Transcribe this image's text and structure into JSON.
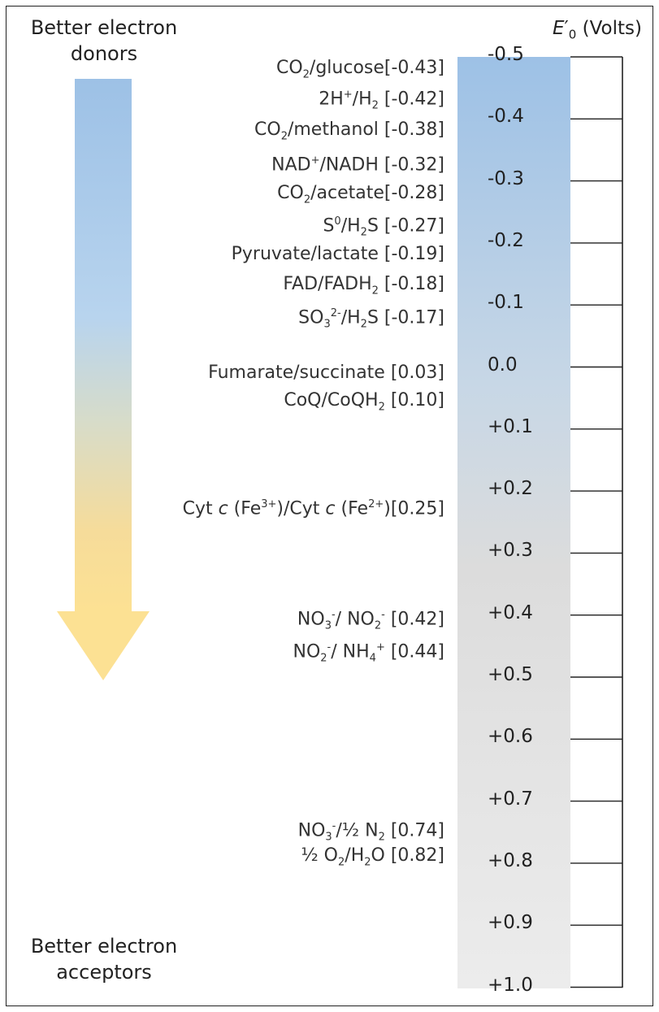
{
  "top_caption": [
    "Better electron",
    "donors"
  ],
  "bottom_caption": [
    "Better electron",
    "acceptors"
  ],
  "axis_title": {
    "symbol": "E",
    "prime": "′",
    "sub": "0",
    "unit": "(Volts)"
  },
  "ticks": [
    "-0.5",
    "-0.4",
    "-0.3",
    "-0.2",
    "-0.1",
    "0.0",
    "+0.1",
    "+0.2",
    "+0.3",
    "+0.4",
    "+0.5",
    "+0.6",
    "+0.7",
    "+0.8",
    "+0.9",
    "+1.0"
  ],
  "couples": [
    {
      "parts": [
        "CO",
        {
          "sub": "2"
        },
        "/glucose[-0.43]"
      ],
      "value": -0.43
    },
    {
      "parts": [
        "2H",
        {
          "sup": "+"
        },
        "/H",
        {
          "sub": "2"
        },
        " [-0.42]"
      ],
      "value": -0.42
    },
    {
      "parts": [
        "CO",
        {
          "sub": "2"
        },
        "/methanol [-0.38]"
      ],
      "value": -0.38
    },
    {
      "parts": [
        "NAD",
        {
          "sup": "+"
        },
        "/NADH [-0.32]"
      ],
      "value": -0.32
    },
    {
      "parts": [
        "CO",
        {
          "sub": "2"
        },
        "/acetate[-0.28]"
      ],
      "value": -0.28
    },
    {
      "parts": [
        "S",
        {
          "sup": "0"
        },
        "/H",
        {
          "sub": "2"
        },
        "S [-0.27]"
      ],
      "value": -0.27
    },
    {
      "parts": [
        "Pyruvate/lactate [-0.19]"
      ],
      "value": -0.19
    },
    {
      "parts": [
        "FAD/FADH",
        {
          "sub": "2"
        },
        " [-0.18]"
      ],
      "value": -0.18
    },
    {
      "parts": [
        "SO",
        {
          "sub": "3"
        },
        {
          "sup": "2-"
        },
        "/H",
        {
          "sub": "2"
        },
        "S [-0.17]"
      ],
      "value": -0.17
    },
    {
      "parts": [
        "Fumarate/succinate [0.03]"
      ],
      "value": 0.03
    },
    {
      "parts": [
        "CoQ/CoQH",
        {
          "sub": "2"
        },
        " [0.10]"
      ],
      "value": 0.1
    },
    {
      "parts": [
        "Cyt ",
        {
          "i": "c"
        },
        " (Fe",
        {
          "sup": "3+"
        },
        ")/Cyt ",
        {
          "i": "c"
        },
        " (Fe",
        {
          "sup": "2+"
        },
        ")[0.25]"
      ],
      "value": 0.25
    },
    {
      "parts": [
        "NO",
        {
          "sub": "3"
        },
        {
          "sup": "-"
        },
        "/ NO",
        {
          "sub": "2"
        },
        {
          "sup": "-"
        },
        " [0.42]"
      ],
      "value": 0.42
    },
    {
      "parts": [
        "NO",
        {
          "sub": "2"
        },
        {
          "sup": "-"
        },
        "/ NH",
        {
          "sub": "4"
        },
        {
          "sup": "+"
        },
        " [0.44]"
      ],
      "value": 0.44
    },
    {
      "parts": [
        "NO",
        {
          "sub": "3"
        },
        {
          "sup": "-"
        },
        "/½ N",
        {
          "sub": "2"
        },
        " [0.74]"
      ],
      "value": 0.74
    },
    {
      "parts": [
        "½ O",
        {
          "sub": "2"
        },
        "/H",
        {
          "sub": "2"
        },
        "O [0.82]"
      ],
      "value": 0.82
    }
  ],
  "colors": {
    "donor_blue": "#9dc1e6",
    "acceptor_yellow": "#fce193",
    "scale_grey": "#ececec"
  }
}
